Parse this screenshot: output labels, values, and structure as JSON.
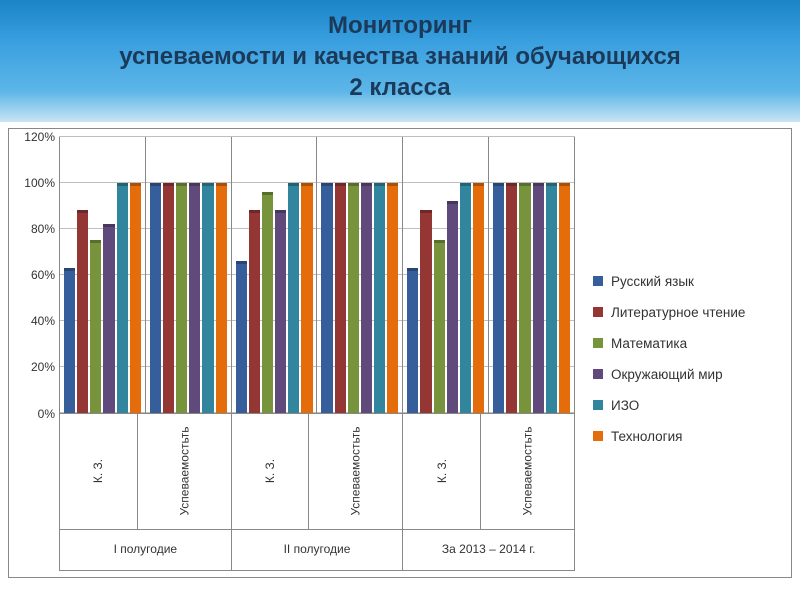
{
  "title_lines": [
    "Мониторинг",
    "успеваемости и качества знаний обучающихся",
    "2 класса"
  ],
  "chart": {
    "type": "bar",
    "ylim_max": 120,
    "ytick_step": 20,
    "ytick_labels": [
      "0%",
      "20%",
      "40%",
      "60%",
      "80%",
      "100%",
      "120%"
    ],
    "grid_color": "#bfbfbf",
    "border_color": "#888888",
    "background_color": "#ffffff",
    "series": [
      {
        "name": "Русский язык",
        "color": "#355e9b"
      },
      {
        "name": "Литературное чтение",
        "color": "#933634"
      },
      {
        "name": "Математика",
        "color": "#77933c"
      },
      {
        "name": "Окружающий мир",
        "color": "#604a7b"
      },
      {
        "name": "ИЗО",
        "color": "#31859c"
      },
      {
        "name": "Технология",
        "color": "#e46c0a"
      }
    ],
    "categories": [
      {
        "label": "I полугодие",
        "subcats": [
          {
            "label": "К. З.",
            "values": [
              63,
              88,
              75,
              82,
              100,
              100
            ]
          },
          {
            "label": "Успеваемостьть",
            "values": [
              100,
              100,
              100,
              100,
              100,
              100
            ]
          }
        ]
      },
      {
        "label": "II полугодие",
        "subcats": [
          {
            "label": "К. З.",
            "values": [
              66,
              88,
              96,
              88,
              100,
              100
            ]
          },
          {
            "label": "Успеваемостьть",
            "values": [
              100,
              100,
              100,
              100,
              100,
              100
            ]
          }
        ]
      },
      {
        "label": "За 2013 – 2014 г.",
        "subcats": [
          {
            "label": "К. З.",
            "values": [
              63,
              88,
              75,
              92,
              100,
              100
            ]
          },
          {
            "label": "Успеваемостьть",
            "values": [
              100,
              100,
              100,
              100,
              100,
              100
            ]
          }
        ]
      }
    ]
  }
}
